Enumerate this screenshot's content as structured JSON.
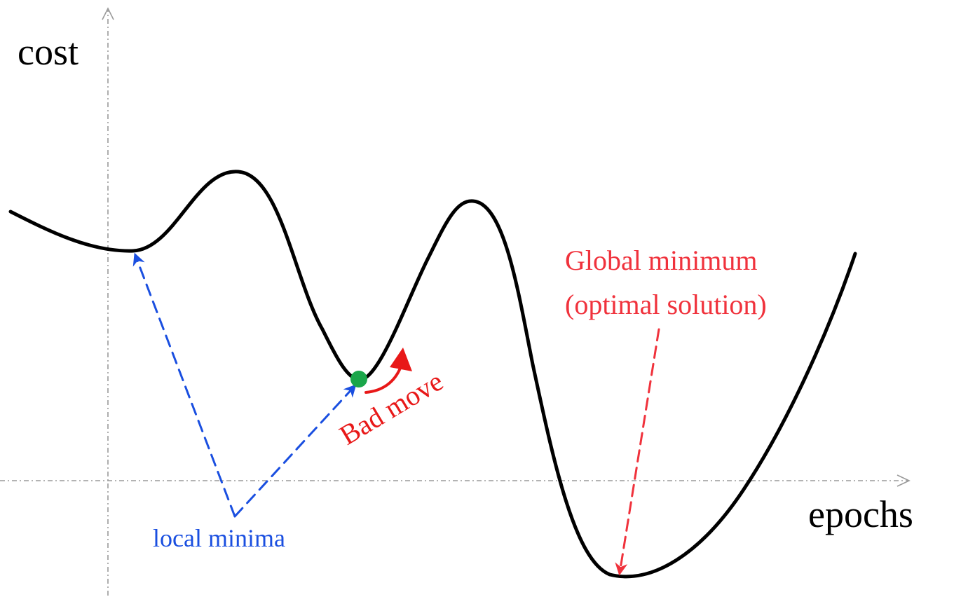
{
  "axes": {
    "y_label": "cost",
    "x_label": "epochs"
  },
  "annotations": {
    "local_minima": "local minima",
    "bad_move": "Bad move",
    "global_minimum_line1": "Global minimum",
    "global_minimum_line2": "(optimal solution)"
  },
  "colors": {
    "curve": "#000000",
    "local_minima": "#1a4fe0",
    "global_minimum": "#f0323c",
    "bad_move": "#e81818",
    "current_point": "#1aa64a",
    "axis": "#9a9a9a"
  }
}
